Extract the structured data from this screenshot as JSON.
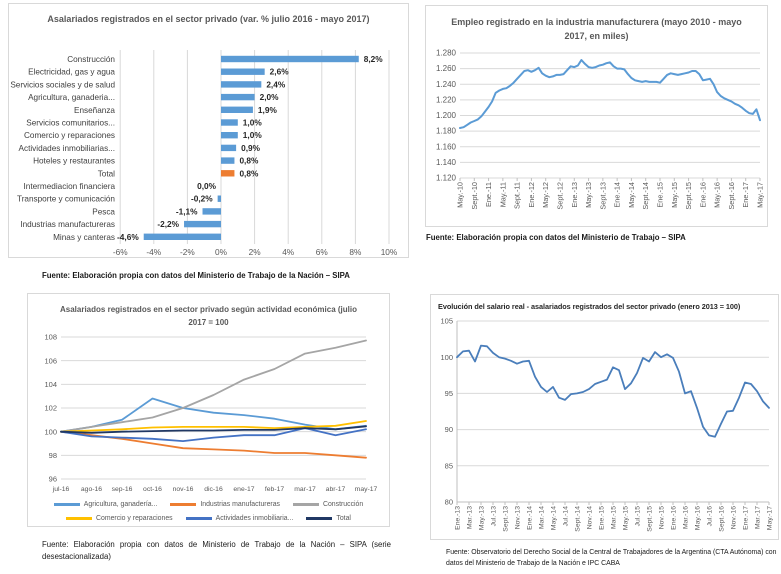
{
  "page": {
    "background": "#ffffff",
    "grid_color": "#D9D9D9",
    "axis_color": "#BFBFBF",
    "text_color": "#595959"
  },
  "chart_data": [
    {
      "id": "sector-variation",
      "type": "bar",
      "orientation": "horizontal",
      "title": "Asalariados registrados en el sector privado (var. % julio 2016 - mayo 2017)",
      "source": "Fuente: Elaboración propia con datos del Ministerio de Trabajo de la Nación – SIPA",
      "categories": [
        "Construcción",
        "Electricidad, gas y agua",
        "Servicios sociales y de salud",
        "Agricultura, ganaderia...",
        "Enseñanza",
        "Servicios comunitarios...",
        "Comercio y reparaciones",
        "Actividades inmobiliarias...",
        "Hoteles y restaurantes",
        "Total",
        "Intermediacion financiera",
        "Transporte y comunicación",
        "Pesca",
        "Industrias manufactureras",
        "Minas y canteras"
      ],
      "values": [
        8.2,
        2.6,
        2.4,
        2.0,
        1.9,
        1.0,
        1.0,
        0.9,
        0.8,
        0.8,
        0.0,
        -0.2,
        -1.1,
        -2.2,
        -4.6
      ],
      "value_labels": [
        "8,2%",
        "2,6%",
        "2,4%",
        "2,0%",
        "1,9%",
        "1,0%",
        "1,0%",
        "0,9%",
        "0,8%",
        "0,8%",
        "0,0%",
        "-0,2%",
        "-1,1%",
        "-2,2%",
        "-4,6%"
      ],
      "total_index": 9,
      "bar_color": "#5B9BD5",
      "total_color": "#ED7D31",
      "xlim": [
        -6,
        10
      ],
      "x_ticks": [
        -6,
        -4,
        -2,
        0,
        2,
        4,
        6,
        8,
        10
      ],
      "x_tick_labels": [
        "-6%",
        "-4%",
        "-2%",
        "0%",
        "2%",
        "4%",
        "6%",
        "8%",
        "10%"
      ],
      "grid": true,
      "legend": "none"
    },
    {
      "id": "empleo-manufacturera",
      "type": "line",
      "title": "Empleo registrado en la industria manufacturera (mayo 2010 - mayo 2017, en miles)",
      "source": "Fuente: Elaboración propia con datos del Ministerio de Trabajo – SIPA",
      "ylim": [
        1120,
        1280
      ],
      "y_ticks": [
        1120,
        1140,
        1160,
        1180,
        1200,
        1220,
        1240,
        1260,
        1280
      ],
      "y_tick_labels": [
        "1.120",
        "1.140",
        "1.160",
        "1.180",
        "1.200",
        "1.220",
        "1.240",
        "1.260",
        "1.280"
      ],
      "x_label_every": 4,
      "x_labels": [
        "May.-10",
        "Sept.-10",
        "Ene.-11",
        "May.-11",
        "Sept.-11",
        "Ene.-12",
        "May.-12",
        "Sept.-12",
        "Ene.-13",
        "May.-13",
        "Sept.-13",
        "Ene.-14",
        "May.-14",
        "Sept.-14",
        "Ene.-15",
        "May.-15",
        "Sept.-15",
        "Ene.-16",
        "May.-16",
        "Sept.-16",
        "Ene.-17",
        "May.-17"
      ],
      "color": "#5B9BD5",
      "values": [
        1184,
        1185,
        1188,
        1191,
        1193,
        1195,
        1199,
        1205,
        1211,
        1218,
        1229,
        1232,
        1234,
        1235,
        1238,
        1242,
        1247,
        1252,
        1257,
        1258,
        1256,
        1258,
        1261,
        1254,
        1251,
        1249,
        1250,
        1252,
        1252,
        1253,
        1258,
        1263,
        1262,
        1264,
        1271,
        1266,
        1262,
        1261,
        1262,
        1264,
        1265,
        1267,
        1268,
        1263,
        1260,
        1260,
        1259,
        1253,
        1248,
        1245,
        1244,
        1243,
        1244,
        1243,
        1243,
        1243,
        1242,
        1247,
        1252,
        1254,
        1253,
        1252,
        1253,
        1254,
        1255,
        1257,
        1257,
        1253,
        1245,
        1246,
        1247,
        1240,
        1230,
        1225,
        1222,
        1220,
        1218,
        1215,
        1213,
        1210,
        1206,
        1203,
        1202,
        1208,
        1194
      ],
      "grid": true,
      "legend": "none"
    },
    {
      "id": "actividad-economica",
      "type": "line",
      "title": "Asalariados registrados en el sector privado según actividad económica (julio 2017 = 100",
      "source": "Fuente: Elaboración propia con datos de Ministerio de Trabajo de la Nación – SIPA (serie desestacionalizada)",
      "ylim": [
        96,
        108
      ],
      "y_ticks": [
        96,
        98,
        100,
        102,
        104,
        106,
        108
      ],
      "y_tick_labels": [
        "96",
        "98",
        "100",
        "102",
        "104",
        "106",
        "108"
      ],
      "x_label_every": 1,
      "x_labels": [
        "jul-16",
        "ago-16",
        "sep-16",
        "oct-16",
        "nov-16",
        "dic-16",
        "ene-17",
        "feb-17",
        "mar-17",
        "abr-17",
        "may-17"
      ],
      "legend": "bottom",
      "series": [
        {
          "name": "Agricultura, ganadería...",
          "color": "#5B9BD5",
          "values": [
            100,
            100.4,
            101.0,
            102.8,
            102.0,
            101.6,
            101.4,
            101.1,
            100.6,
            100.2,
            100.5
          ]
        },
        {
          "name": "Industrias manufactureras",
          "color": "#ED7D31",
          "values": [
            100,
            99.7,
            99.4,
            99.0,
            98.6,
            98.5,
            98.4,
            98.2,
            98.2,
            98.0,
            97.8
          ]
        },
        {
          "name": "Construcción",
          "color": "#A5A5A5",
          "values": [
            100,
            100.4,
            100.8,
            101.2,
            102.0,
            103.1,
            104.4,
            105.3,
            106.6,
            107.1,
            107.7
          ]
        },
        {
          "name": "Comercio y reparaciones",
          "color": "#FFC000",
          "values": [
            100,
            100.1,
            100.2,
            100.35,
            100.4,
            100.4,
            100.4,
            100.3,
            100.4,
            100.5,
            100.9
          ]
        },
        {
          "name": "Actividades inmobiliaria...",
          "color": "#4472C4",
          "values": [
            100,
            99.6,
            99.5,
            99.4,
            99.2,
            99.5,
            99.7,
            99.7,
            100.3,
            99.7,
            100.2
          ]
        },
        {
          "name": "Total",
          "color": "#203864",
          "values": [
            100,
            99.9,
            100.0,
            100.05,
            100.1,
            100.1,
            100.15,
            100.15,
            100.3,
            100.2,
            100.45
          ]
        }
      ],
      "grid": true
    },
    {
      "id": "salario-real",
      "type": "line",
      "title": "Evolución del salario real - asalariados registrados del sector privado (enero 2013 = 100)",
      "source": "Fuente: Observatorio del Derecho Social de la Central de Trabajadores de la Argentina (CTA Autónoma) con datos del Ministerio de Trabajo de la Nación e IPC CABA",
      "ylim": [
        80,
        105
      ],
      "y_ticks": [
        80,
        85,
        90,
        95,
        100,
        105
      ],
      "y_tick_labels": [
        "80",
        "85",
        "90",
        "95",
        "100",
        "105"
      ],
      "x_label_every": 2,
      "x_labels": [
        "Ene.-13",
        "Mar.-13",
        "May.-13",
        "Jul.-13",
        "Sept.-13",
        "Nov.-13",
        "Ene.-14",
        "Mar.-14",
        "May.-14",
        "Jul.-14",
        "Sept.-14",
        "Nov.-14",
        "Ene.-15",
        "Mar.-15",
        "May.-15",
        "Jul.-15",
        "Sept.-15",
        "Nov.-15",
        "Ene.-16",
        "Mar.-16",
        "May.-16",
        "Jul.-16",
        "Sept.-16",
        "Nov.-16",
        "Ene.-17",
        "Mar.-17",
        "May.-17"
      ],
      "color": "#4A7EBB",
      "values": [
        100.0,
        100.8,
        100.9,
        99.4,
        101.6,
        101.5,
        100.6,
        100.0,
        99.8,
        99.5,
        99.1,
        99.4,
        99.5,
        97.3,
        95.9,
        95.2,
        95.9,
        94.4,
        94.1,
        94.9,
        95.0,
        95.2,
        95.6,
        96.3,
        96.6,
        96.9,
        98.6,
        98.2,
        95.6,
        96.4,
        97.8,
        99.9,
        99.4,
        100.7,
        100.0,
        100.4,
        99.9,
        98.0,
        95.0,
        95.3,
        93.0,
        90.4,
        89.2,
        89.0,
        90.8,
        92.5,
        92.6,
        94.4,
        96.5,
        96.3,
        95.3,
        93.9,
        93.0
      ],
      "grid": true,
      "legend": "none"
    }
  ]
}
